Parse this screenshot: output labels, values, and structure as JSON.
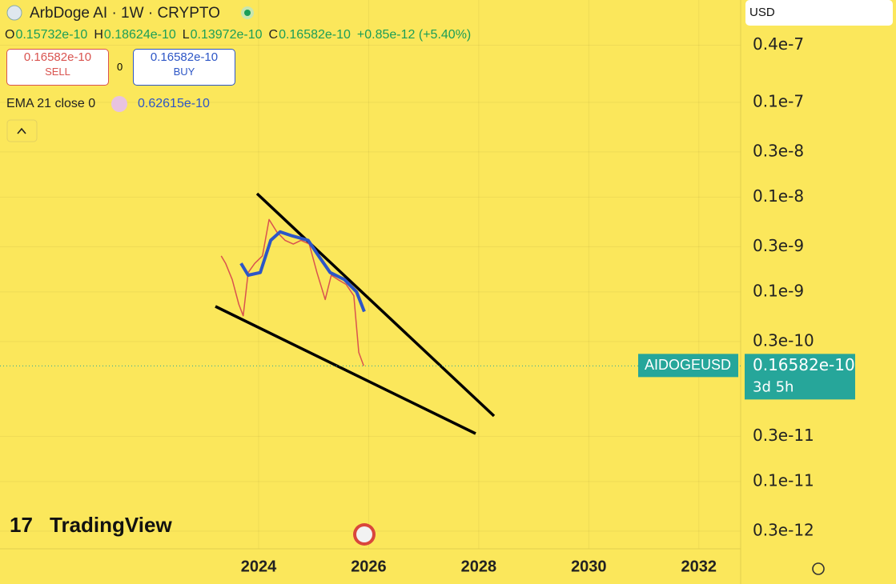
{
  "header": {
    "title": "ArbDoge AI · 1W · CRYPTO",
    "ohlc": [
      {
        "key": "O",
        "value": "0.15732e-10"
      },
      {
        "key": "H",
        "value": "0.18624e-10"
      },
      {
        "key": "L",
        "value": "0.13972e-10"
      },
      {
        "key": "C",
        "value": "0.16582e-10"
      }
    ],
    "change": "+0.85e-12 (+5.40%)",
    "sell_price": "0.16582e-10",
    "sell_label": "SELL",
    "spread": "0",
    "buy_price": "0.16582e-10",
    "buy_label": "BUY",
    "ema_value": "0.62615e-10",
    "currency": "USD",
    "last_price_label": "0.16582e-10",
    "countdown": "3d 5h",
    "brand": "TradingView"
  },
  "chart_data": {
    "type": "line",
    "log_scale": true,
    "grid": true,
    "xlim": [
      2019.3,
      2032.76
    ],
    "xticks": [
      2024,
      2026,
      2028,
      2030,
      2032
    ],
    "ylim": [
      1.2e-07,
      1.95e-13
    ],
    "yticks": [
      {
        "value": 4e-08,
        "label": "0.4e-7"
      },
      {
        "value": 1e-08,
        "label": "0.1e-7"
      },
      {
        "value": 3e-09,
        "label": "0.3e-8"
      },
      {
        "value": 1e-09,
        "label": "0.1e-8"
      },
      {
        "value": 3e-10,
        "label": "0.3e-9"
      },
      {
        "value": 1e-10,
        "label": "0.1e-9"
      },
      {
        "value": 3e-11,
        "label": "0.3e-10"
      },
      {
        "value": 3e-12,
        "label": "0.3e-11"
      },
      {
        "value": 1e-12,
        "label": "0.1e-11"
      },
      {
        "value": 3e-13,
        "label": "0.3e-12"
      }
    ],
    "series": [
      {
        "name": "AIDOGEUSD",
        "color": "#d9534f",
        "x": [
          2023.32,
          2023.4,
          2023.52,
          2023.64,
          2023.72,
          2023.81,
          2023.93,
          2024.07,
          2024.19,
          2024.33,
          2024.48,
          2024.63,
          2024.77,
          2024.92,
          2025.06,
          2025.21,
          2025.32,
          2025.44,
          2025.59,
          2025.73,
          2025.82,
          2025.91
        ],
        "values": [
          2.4e-10,
          2e-10,
          1.35e-10,
          7.4e-11,
          5.6e-11,
          1.6e-10,
          2e-10,
          2.4e-10,
          5.8e-10,
          4.3e-10,
          3.5e-10,
          3.2e-10,
          3.5e-10,
          3.2e-10,
          1.6e-10,
          8.3e-11,
          1.5e-10,
          1.35e-10,
          1.2e-10,
          9.1e-11,
          2.3e-11,
          1.6582e-11
        ]
      },
      {
        "name": "EMA 21 close 0",
        "color": "#2d56c6",
        "x": [
          2023.68,
          2023.81,
          2024.03,
          2024.22,
          2024.39,
          2024.61,
          2024.9,
          2025.09,
          2025.3,
          2025.56,
          2025.78,
          2025.92
        ],
        "values": [
          2e-10,
          1.5e-10,
          1.6e-10,
          3.5e-10,
          4.3e-10,
          3.9e-10,
          3.5e-10,
          2.4e-10,
          1.6e-10,
          1.35e-10,
          1e-10,
          6.2e-11
        ]
      }
    ]
  }
}
